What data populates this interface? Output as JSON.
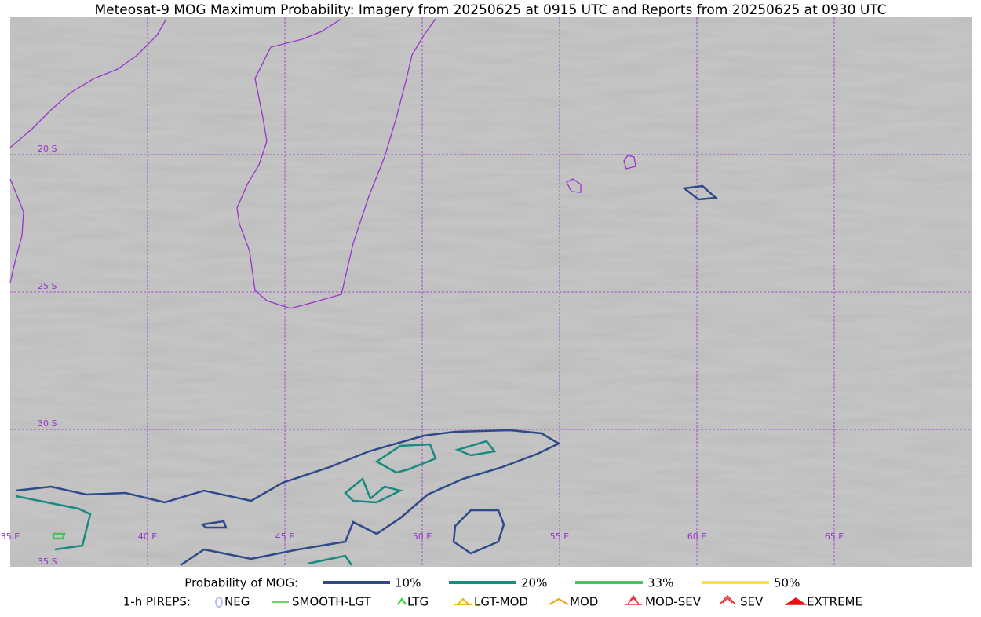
{
  "title": "Meteosat-9 MOG Maximum Probability: Imagery from 20250625 at 0915 UTC and Reports from 20250625 at 0930 UTC",
  "map": {
    "lat_labels": [
      "20 S",
      "25 S",
      "30 S",
      "35 S"
    ],
    "lon_labels": [
      "35 E",
      "40 E",
      "45 E",
      "50 E",
      "55 E",
      "60 E",
      "65 E"
    ]
  },
  "legend": {
    "probability": {
      "label": "Probability of MOG:",
      "items": [
        {
          "label": "10%",
          "color": "#2f4a8a"
        },
        {
          "label": "20%",
          "color": "#1a8a80"
        },
        {
          "label": "33%",
          "color": "#4cc05a"
        },
        {
          "label": "50%",
          "color": "#fde725"
        }
      ]
    },
    "pireps": {
      "label": "1-h PIREPS:",
      "items": [
        {
          "label": "NEG",
          "color": "#b8b8f0"
        },
        {
          "label": "SMOOTH-LGT",
          "color": "#33cc33"
        },
        {
          "label": "LTG",
          "color": "#22dd22"
        },
        {
          "label": "LGT-MOD",
          "color": "#f0b020"
        },
        {
          "label": "MOD",
          "color": "#f0a010"
        },
        {
          "label": "MOD-SEV",
          "color": "#e83030"
        },
        {
          "label": "SEV",
          "color": "#e82020"
        },
        {
          "label": "EXTREME",
          "color": "#e81010"
        }
      ]
    }
  }
}
